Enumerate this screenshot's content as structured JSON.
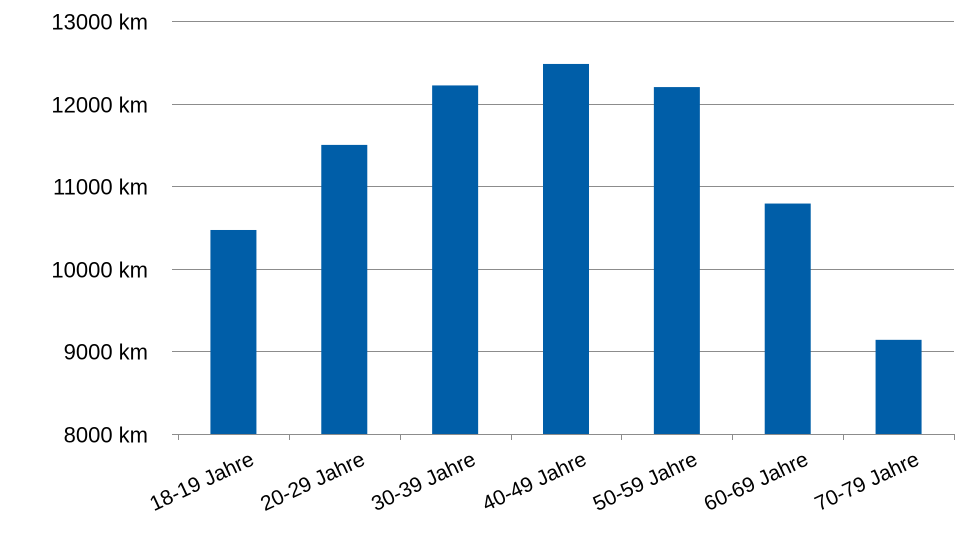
{
  "chart_data": {
    "type": "bar",
    "title": "",
    "xlabel": "",
    "ylabel": "",
    "categories": [
      "18-19 Jahre",
      "20-29 Jahre",
      "30-39 Jahre",
      "40-49 Jahre",
      "50-59 Jahre",
      "60-69 Jahre",
      "70-79 Jahre"
    ],
    "values": [
      10470,
      11500,
      12220,
      12480,
      12200,
      10790,
      9140
    ],
    "ylim": [
      8000,
      13000
    ],
    "yticks": [
      8000,
      9000,
      10000,
      11000,
      12000,
      13000
    ],
    "ytick_labels": [
      "8000 km",
      "9000 km",
      "10000 km",
      "11000 km",
      "12000 km",
      "13000 km"
    ],
    "grid": true,
    "legend": "none",
    "colors": {
      "bar": "#005ea8"
    }
  }
}
